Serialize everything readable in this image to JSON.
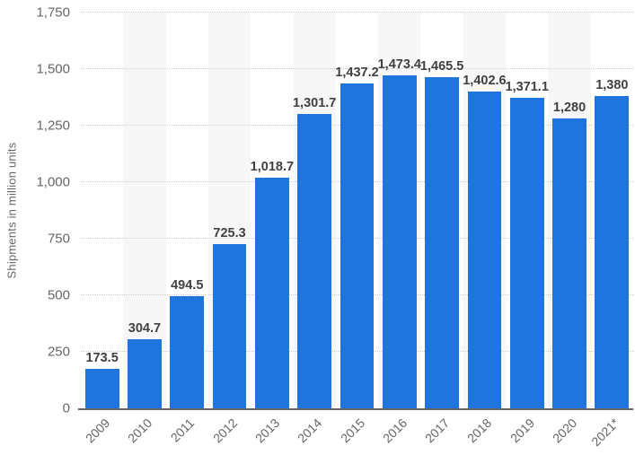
{
  "chart_data": {
    "type": "bar",
    "title": "",
    "xlabel": "",
    "ylabel": "Shipments in million units",
    "ylim": [
      0,
      1750
    ],
    "ytick_interval": 250,
    "yticks": [
      {
        "value": 0,
        "label": "0"
      },
      {
        "value": 250,
        "label": "250"
      },
      {
        "value": 500,
        "label": "500"
      },
      {
        "value": 750,
        "label": "750"
      },
      {
        "value": 1000,
        "label": "1,000"
      },
      {
        "value": 1250,
        "label": "1,250"
      },
      {
        "value": 1500,
        "label": "1,500"
      },
      {
        "value": 1750,
        "label": "1,750"
      }
    ],
    "categories": [
      "2009",
      "2010",
      "2011",
      "2012",
      "2013",
      "2014",
      "2015",
      "2016",
      "2017",
      "2018",
      "2019",
      "2020",
      "2021*"
    ],
    "values": [
      173.5,
      304.7,
      494.5,
      725.3,
      1018.7,
      1301.7,
      1437.2,
      1473.4,
      1465.5,
      1402.6,
      1371.1,
      1280,
      1380
    ],
    "value_labels": [
      "173.5",
      "304.7",
      "494.5",
      "725.3",
      "1,018.7",
      "1,301.7",
      "1,437.2",
      "1,473.4",
      "1,465.5",
      "1,402.6",
      "1,371.1",
      "1,280",
      "1,380"
    ],
    "grid": "horizontal-dotted",
    "legend": "none",
    "colors": {
      "bar": "#1f74dd",
      "band": "#f7f7f7",
      "gridline": "#cccccc",
      "axis_line": "#666666",
      "tick_text": "#666666",
      "value_label_text": "#404040"
    }
  }
}
